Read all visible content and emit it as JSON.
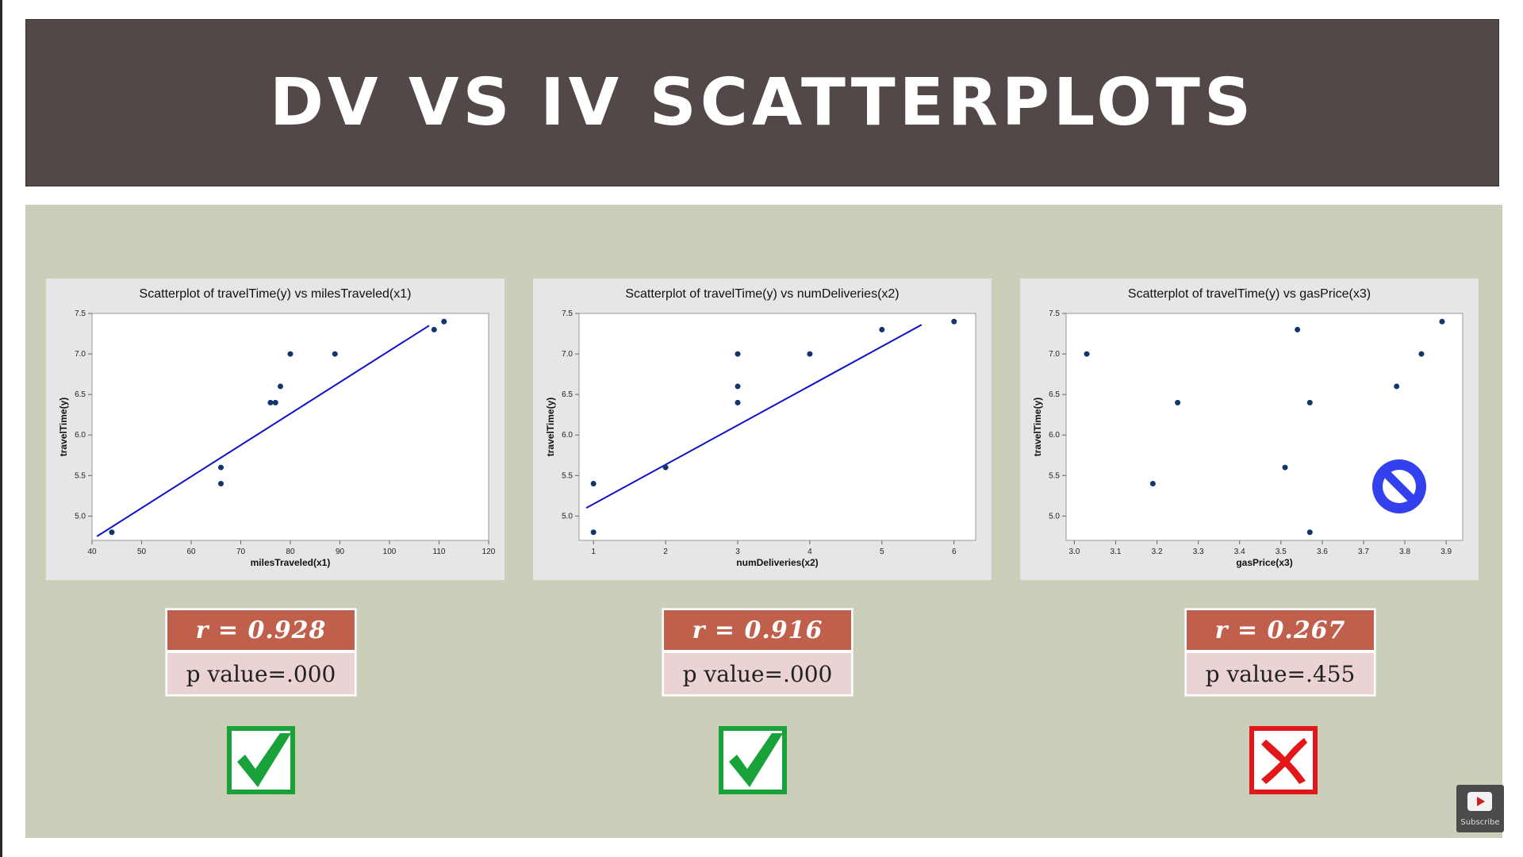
{
  "slide": {
    "title": "DV VS IV SCATTERPLOTS",
    "colors": {
      "banner": "#524847",
      "panel": "#cbcfb9",
      "r_box": "#c0604c",
      "p_box": "#ead3d2",
      "check": "#1aa23a",
      "cross": "#e3171a",
      "no_sign": "#3340ee"
    }
  },
  "chart_data": [
    {
      "type": "scatter",
      "title": "Scatterplot of travelTime(y) vs milesTraveled(x1)",
      "xlabel": "milesTraveled(x1)",
      "ylabel": "travelTime(y)",
      "xlim": [
        40,
        120
      ],
      "ylim": [
        4.7,
        7.5
      ],
      "xticks": [
        40,
        50,
        60,
        70,
        80,
        90,
        100,
        110,
        120
      ],
      "yticks": [
        5.0,
        5.5,
        6.0,
        6.5,
        7.0,
        7.5
      ],
      "xtick_labels": [
        "40",
        "50",
        "60",
        "70",
        "80",
        "90",
        "100",
        "110",
        "120"
      ],
      "ytick_labels": [
        "5.0",
        "5.5",
        "6.0",
        "6.5",
        "7.0",
        "7.5"
      ],
      "points": [
        [
          44,
          4.8
        ],
        [
          66,
          5.6
        ],
        [
          66,
          5.4
        ],
        [
          76,
          6.4
        ],
        [
          77,
          6.4
        ],
        [
          78,
          6.6
        ],
        [
          80,
          7.0
        ],
        [
          89,
          7.0
        ],
        [
          109,
          7.3
        ],
        [
          111,
          7.4
        ]
      ],
      "fit_line": [
        [
          41,
          4.75
        ],
        [
          108,
          7.35
        ]
      ],
      "stats": {
        "r": "r = 0.928",
        "p": "p value=.000"
      },
      "verdict": "check"
    },
    {
      "type": "scatter",
      "title": "Scatterplot of travelTime(y) vs numDeliveries(x2)",
      "xlabel": "numDeliveries(x2)",
      "ylabel": "travelTime(y)",
      "xlim": [
        0.8,
        6.3
      ],
      "ylim": [
        4.7,
        7.5
      ],
      "xticks": [
        1,
        2,
        3,
        4,
        5,
        6
      ],
      "yticks": [
        5.0,
        5.5,
        6.0,
        6.5,
        7.0,
        7.5
      ],
      "xtick_labels": [
        "1",
        "2",
        "3",
        "4",
        "5",
        "6"
      ],
      "ytick_labels": [
        "5.0",
        "5.5",
        "6.0",
        "6.5",
        "7.0",
        "7.5"
      ],
      "points": [
        [
          1,
          5.4
        ],
        [
          1,
          4.8
        ],
        [
          2,
          5.6
        ],
        [
          3,
          7.0
        ],
        [
          3,
          6.6
        ],
        [
          3,
          6.4
        ],
        [
          4,
          7.0
        ],
        [
          5,
          7.3
        ],
        [
          6,
          7.4
        ]
      ],
      "fit_line": [
        [
          0.9,
          5.1
        ],
        [
          5.55,
          7.36
        ]
      ],
      "stats": {
        "r": "r = 0.916",
        "p": "p value=.000"
      },
      "verdict": "check"
    },
    {
      "type": "scatter",
      "title": "Scatterplot of travelTime(y) vs gasPrice(x3)",
      "xlabel": "gasPrice(x3)",
      "ylabel": "travelTime(y)",
      "xlim": [
        2.98,
        3.94
      ],
      "ylim": [
        4.7,
        7.5
      ],
      "xticks": [
        3.0,
        3.1,
        3.2,
        3.3,
        3.4,
        3.5,
        3.6,
        3.7,
        3.8,
        3.9
      ],
      "yticks": [
        5.0,
        5.5,
        6.0,
        6.5,
        7.0,
        7.5
      ],
      "xtick_labels": [
        "3.0",
        "3.1",
        "3.2",
        "3.3",
        "3.4",
        "3.5",
        "3.6",
        "3.7",
        "3.8",
        "3.9"
      ],
      "ytick_labels": [
        "5.0",
        "5.5",
        "6.0",
        "6.5",
        "7.0",
        "7.5"
      ],
      "points": [
        [
          3.03,
          7.0
        ],
        [
          3.19,
          5.4
        ],
        [
          3.25,
          6.4
        ],
        [
          3.51,
          5.6
        ],
        [
          3.54,
          7.3
        ],
        [
          3.57,
          6.4
        ],
        [
          3.57,
          4.8
        ],
        [
          3.78,
          6.6
        ],
        [
          3.84,
          7.0
        ],
        [
          3.89,
          7.4
        ]
      ],
      "fit_line": null,
      "stats": {
        "r": "r = 0.267",
        "p": "p value=.455"
      },
      "verdict": "cross"
    }
  ],
  "overlay": {
    "subscribe_label": "Subscribe"
  }
}
